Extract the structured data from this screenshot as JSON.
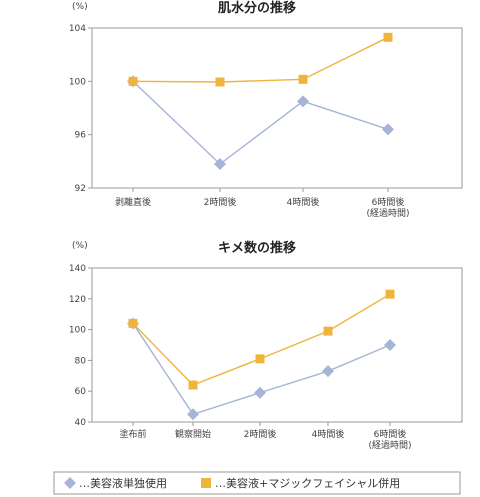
{
  "colors": {
    "series_a": "#a6b4d8",
    "series_b": "#f0b43c",
    "axis": "#999999",
    "plot_bg": "#ffffff"
  },
  "legend": {
    "items": [
      {
        "label": "…美容液単独使用",
        "color": "#a6b4d8",
        "marker": "diamond"
      },
      {
        "label": "…美容液+マジックフェイシャル併用",
        "color": "#f0b43c",
        "marker": "square"
      }
    ]
  },
  "chart_data": [
    {
      "type": "line",
      "title": "肌水分の推移",
      "unit_label": "(%)",
      "categories": [
        "剥離直後",
        "2時間後",
        "4時間後",
        "6時間後\n(経過時間)"
      ],
      "ylim": [
        92,
        104
      ],
      "yticks": [
        92,
        96,
        100,
        104
      ],
      "grid": false,
      "legend_position": "bottom",
      "series": [
        {
          "name": "…美容液単独使用",
          "marker": "diamond",
          "color": "#a6b4d8",
          "values": [
            100.0,
            93.8,
            98.5,
            96.4
          ]
        },
        {
          "name": "…美容液+マジックフェイシャル併用",
          "marker": "square",
          "color": "#f0b43c",
          "values": [
            100.0,
            99.95,
            100.15,
            103.3
          ]
        }
      ]
    },
    {
      "type": "line",
      "title": "キメ数の推移",
      "unit_label": "(%)",
      "categories": [
        "塗布前",
        "観察開始",
        "2時間後",
        "4時間後",
        "6時間後\n(経過時間)"
      ],
      "ylim": [
        40,
        140
      ],
      "yticks": [
        40,
        60,
        80,
        100,
        120,
        140
      ],
      "grid": false,
      "legend_position": "bottom",
      "series": [
        {
          "name": "…美容液単独使用",
          "marker": "diamond",
          "color": "#a6b4d8",
          "values": [
            104,
            45,
            59,
            73,
            90
          ]
        },
        {
          "name": "…美容液+マジックフェイシャル併用",
          "marker": "square",
          "color": "#f0b43c",
          "values": [
            104,
            64,
            81,
            99,
            123
          ]
        }
      ]
    }
  ]
}
